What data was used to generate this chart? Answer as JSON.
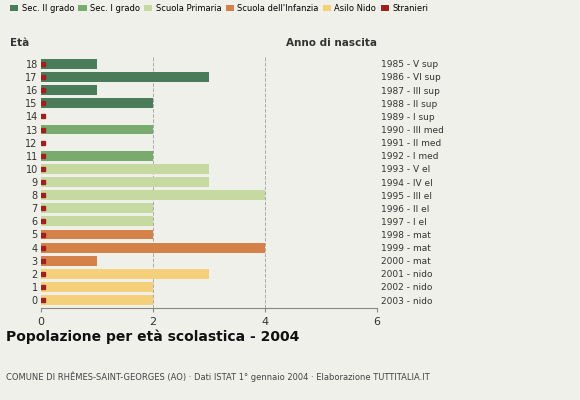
{
  "ages": [
    18,
    17,
    16,
    15,
    14,
    13,
    12,
    11,
    10,
    9,
    8,
    7,
    6,
    5,
    4,
    3,
    2,
    1,
    0
  ],
  "anno_nascita": [
    "1985 - V sup",
    "1986 - VI sup",
    "1987 - III sup",
    "1988 - II sup",
    "1989 - I sup",
    "1990 - III med",
    "1991 - II med",
    "1992 - I med",
    "1993 - V el",
    "1994 - IV el",
    "1995 - III el",
    "1996 - II el",
    "1997 - I el",
    "1998 - mat",
    "1999 - mat",
    "2000 - mat",
    "2001 - nido",
    "2002 - nido",
    "2003 - nido"
  ],
  "values": [
    1,
    3,
    1,
    2,
    0,
    2,
    0,
    2,
    3,
    3,
    4,
    2,
    2,
    2,
    4,
    1,
    3,
    2,
    2
  ],
  "colors": {
    "sec2": "#4a7c59",
    "sec1": "#7aab6e",
    "primaria": "#c5d9a0",
    "infanzia": "#d4824a",
    "nido": "#f5d07a",
    "stranieri": "#a02020"
  },
  "bar_colors": [
    "sec2",
    "sec2",
    "sec2",
    "sec2",
    "sec2",
    "sec1",
    "sec1",
    "sec1",
    "primaria",
    "primaria",
    "primaria",
    "primaria",
    "primaria",
    "infanzia",
    "infanzia",
    "infanzia",
    "nido",
    "nido",
    "nido"
  ],
  "legend_labels": [
    "Sec. II grado",
    "Sec. I grado",
    "Scuola Primaria",
    "Scuola dell'Infanzia",
    "Asilo Nido",
    "Stranieri"
  ],
  "legend_colors": [
    "#4a7c59",
    "#7aab6e",
    "#c5d9a0",
    "#d4824a",
    "#f5d07a",
    "#a02020"
  ],
  "xlim": [
    0,
    6
  ],
  "xticks": [
    0,
    2,
    4,
    6
  ],
  "title": "Popolazione per età scolastica - 2004",
  "subtitle": "COMUNE DI RHÊMES-SAINT-GEORGES (AO) · Dati ISTAT 1° gennaio 2004 · Elaborazione TUTTITALIA.IT",
  "ylabel_left": "Età",
  "ylabel_right": "Anno di nascita",
  "bg_color": "#f0f0eb",
  "grid_color": "#aaaaaa"
}
